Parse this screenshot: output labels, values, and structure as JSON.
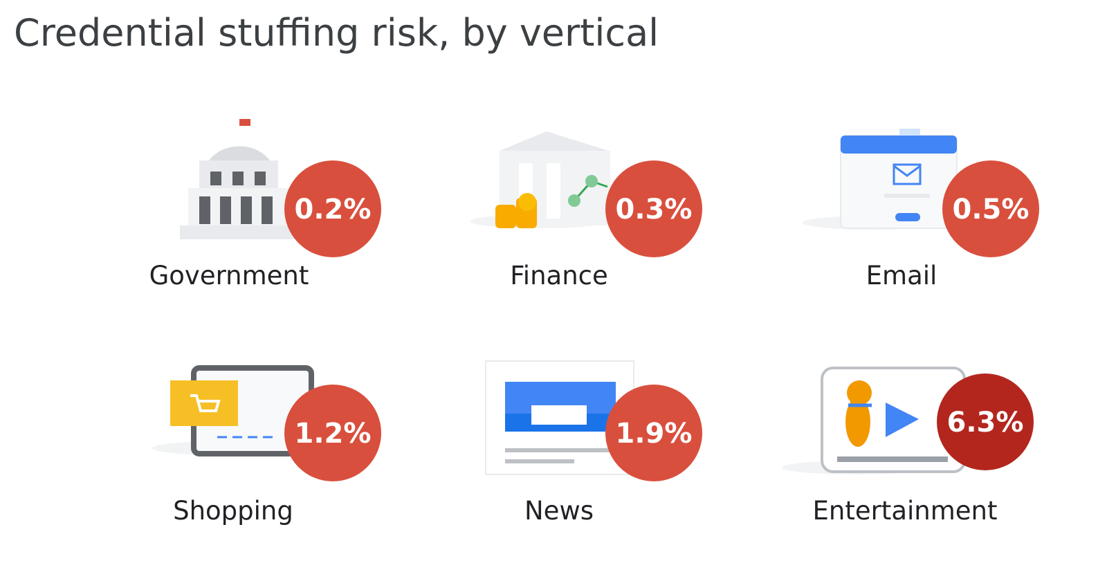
{
  "header": {
    "title": "Credential stuffing risk, by vertical"
  },
  "items": [
    {
      "label": "Government",
      "value": "0.2%",
      "color": "#d94f3d"
    },
    {
      "label": "Finance",
      "value": "0.3%",
      "color": "#d94f3d"
    },
    {
      "label": "Email",
      "value": "0.5%",
      "color": "#d94f3d"
    },
    {
      "label": "Shopping",
      "value": "1.2%",
      "color": "#d94f3d"
    },
    {
      "label": "News",
      "value": "1.9%",
      "color": "#d94f3d"
    },
    {
      "label": "Entertainment",
      "value": "6.3%",
      "color": "#b3261e"
    }
  ]
}
